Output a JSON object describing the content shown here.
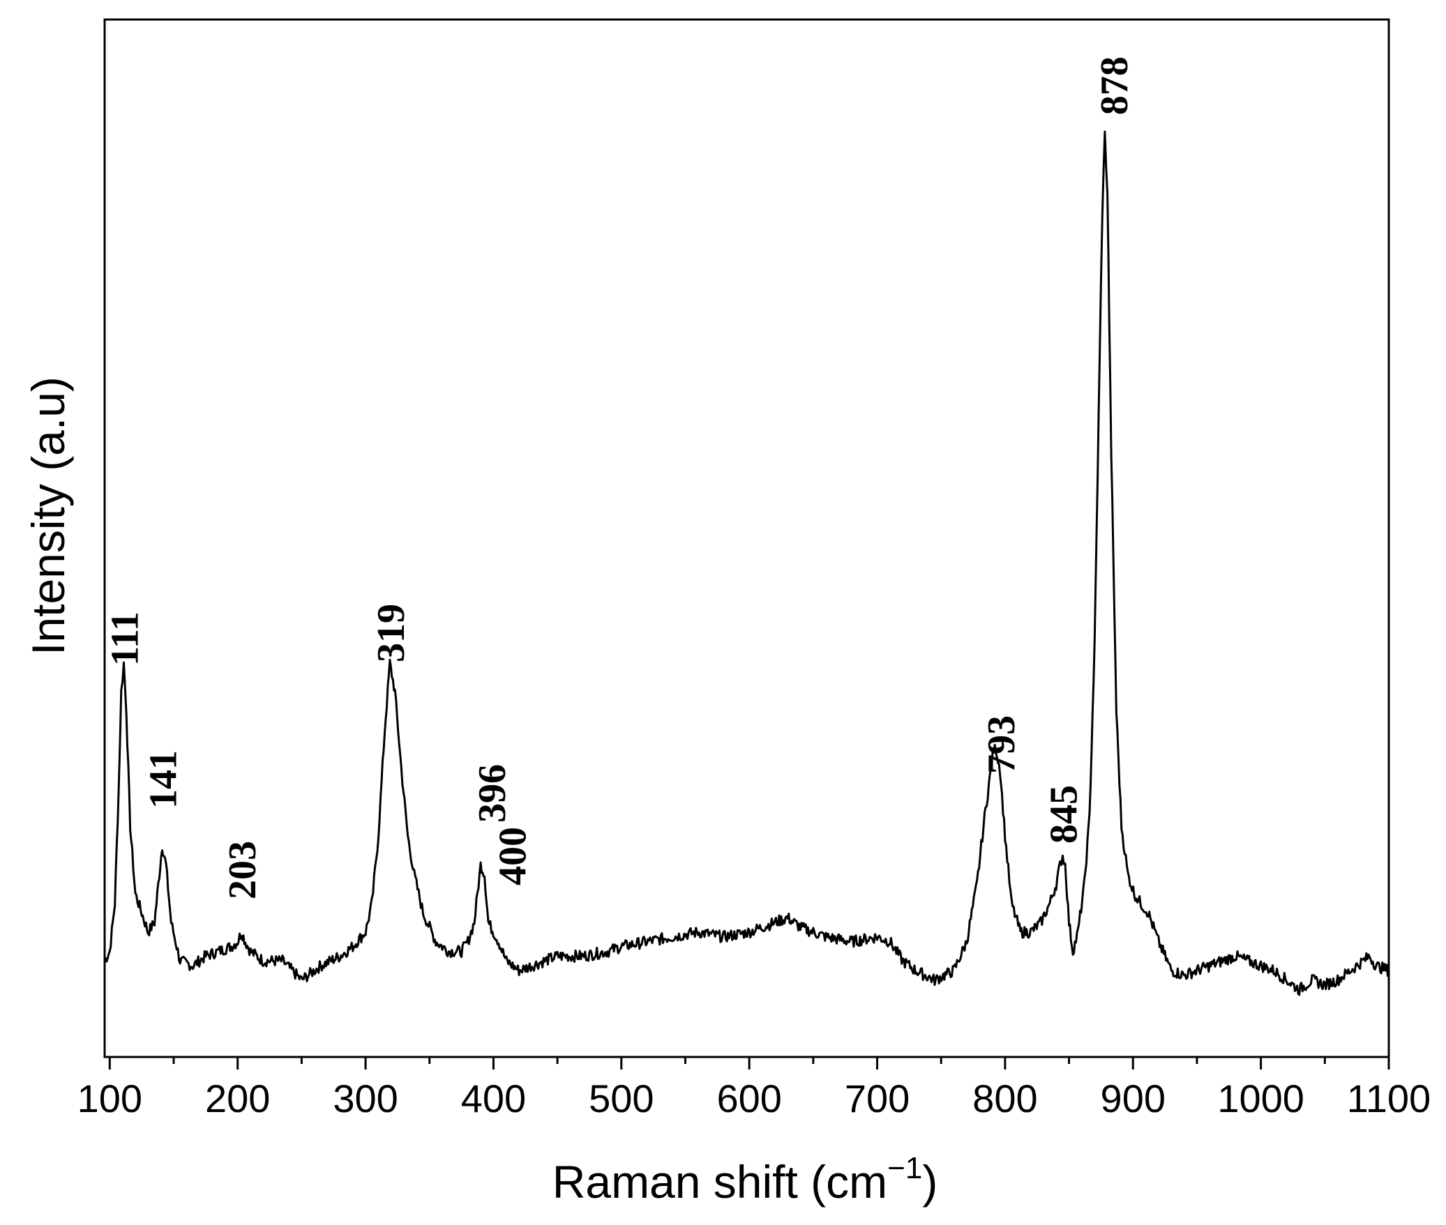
{
  "chart_data": {
    "type": "line",
    "title": "",
    "xlabel": "Raman shift (cm",
    "xlabel_sup": "−1",
    "xlabel_end": ")",
    "ylabel": "Intensity (a.u)",
    "xlim": [
      96,
      1100
    ],
    "ylim": [
      -0.08,
      1.0
    ],
    "x_ticks": [
      100,
      200,
      300,
      400,
      500,
      600,
      700,
      800,
      900,
      1000,
      1100
    ],
    "x_tick_labels": [
      "100",
      "200",
      "300",
      "400",
      "500",
      "600",
      "700",
      "800",
      "900",
      "1000",
      "1100"
    ],
    "y_ticks_shown": false,
    "grid": false,
    "line_color": "#000000",
    "series": [
      {
        "x": [
          96,
          100,
          104,
          107,
          109,
          111,
          113,
          116,
          120,
          125,
          130,
          135,
          138,
          141,
          144,
          148,
          155,
          165,
          175,
          185,
          195,
          200,
          203,
          206,
          210,
          220,
          235,
          250,
          265,
          280,
          290,
          300,
          305,
          310,
          315,
          319,
          323,
          328,
          333,
          338,
          345,
          355,
          365,
          375,
          380,
          385,
          390,
          393,
          396,
          400,
          404,
          410,
          420,
          430,
          450,
          470,
          490,
          500,
          520,
          540,
          560,
          580,
          600,
          620,
          630,
          640,
          660,
          680,
          700,
          710,
          720,
          730,
          745,
          760,
          770,
          778,
          784,
          788,
          791,
          793,
          796,
          800,
          805,
          812,
          820,
          828,
          835,
          840,
          843,
          845,
          847,
          850,
          853,
          857,
          862,
          866,
          870,
          874,
          876,
          878,
          880,
          883,
          887,
          891,
          896,
          901,
          906,
          912,
          920,
          930,
          940,
          950,
          960,
          970,
          980,
          990,
          1000,
          1010,
          1020,
          1030,
          1040,
          1050,
          1060,
          1070,
          1080,
          1085,
          1090,
          1100
        ],
        "y": [
          0.02,
          0.03,
          0.08,
          0.2,
          0.3,
          0.33,
          0.28,
          0.16,
          0.09,
          0.07,
          0.05,
          0.06,
          0.1,
          0.14,
          0.12,
          0.06,
          0.02,
          0.015,
          0.025,
          0.03,
          0.035,
          0.04,
          0.05,
          0.04,
          0.03,
          0.02,
          0.02,
          0.0,
          0.015,
          0.025,
          0.035,
          0.05,
          0.08,
          0.15,
          0.26,
          0.33,
          0.3,
          0.22,
          0.15,
          0.11,
          0.07,
          0.04,
          0.03,
          0.03,
          0.04,
          0.06,
          0.12,
          0.11,
          0.06,
          0.05,
          0.04,
          0.02,
          0.01,
          0.015,
          0.025,
          0.025,
          0.03,
          0.035,
          0.04,
          0.045,
          0.05,
          0.045,
          0.05,
          0.06,
          0.065,
          0.055,
          0.045,
          0.04,
          0.045,
          0.04,
          0.02,
          0.01,
          0.0,
          0.01,
          0.04,
          0.1,
          0.17,
          0.21,
          0.24,
          0.24,
          0.22,
          0.15,
          0.08,
          0.05,
          0.05,
          0.06,
          0.08,
          0.1,
          0.12,
          0.13,
          0.12,
          0.06,
          0.03,
          0.05,
          0.1,
          0.17,
          0.35,
          0.65,
          0.8,
          0.88,
          0.82,
          0.55,
          0.28,
          0.16,
          0.11,
          0.09,
          0.08,
          0.07,
          0.04,
          0.01,
          0.005,
          0.01,
          0.015,
          0.02,
          0.025,
          0.02,
          0.015,
          0.01,
          0.0,
          -0.01,
          0.0,
          -0.005,
          0.0,
          0.01,
          0.02,
          0.025,
          0.015,
          0.01
        ]
      }
    ],
    "annotations": [
      {
        "text": "111",
        "x": 111
      },
      {
        "text": "141",
        "x": 141
      },
      {
        "text": "203",
        "x": 203
      },
      {
        "text": "319",
        "x": 319
      },
      {
        "text": "396",
        "x": 396
      },
      {
        "text": "400",
        "x": 400
      },
      {
        "text": "793",
        "x": 793
      },
      {
        "text": "845",
        "x": 845
      },
      {
        "text": "878",
        "x": 878
      }
    ]
  }
}
